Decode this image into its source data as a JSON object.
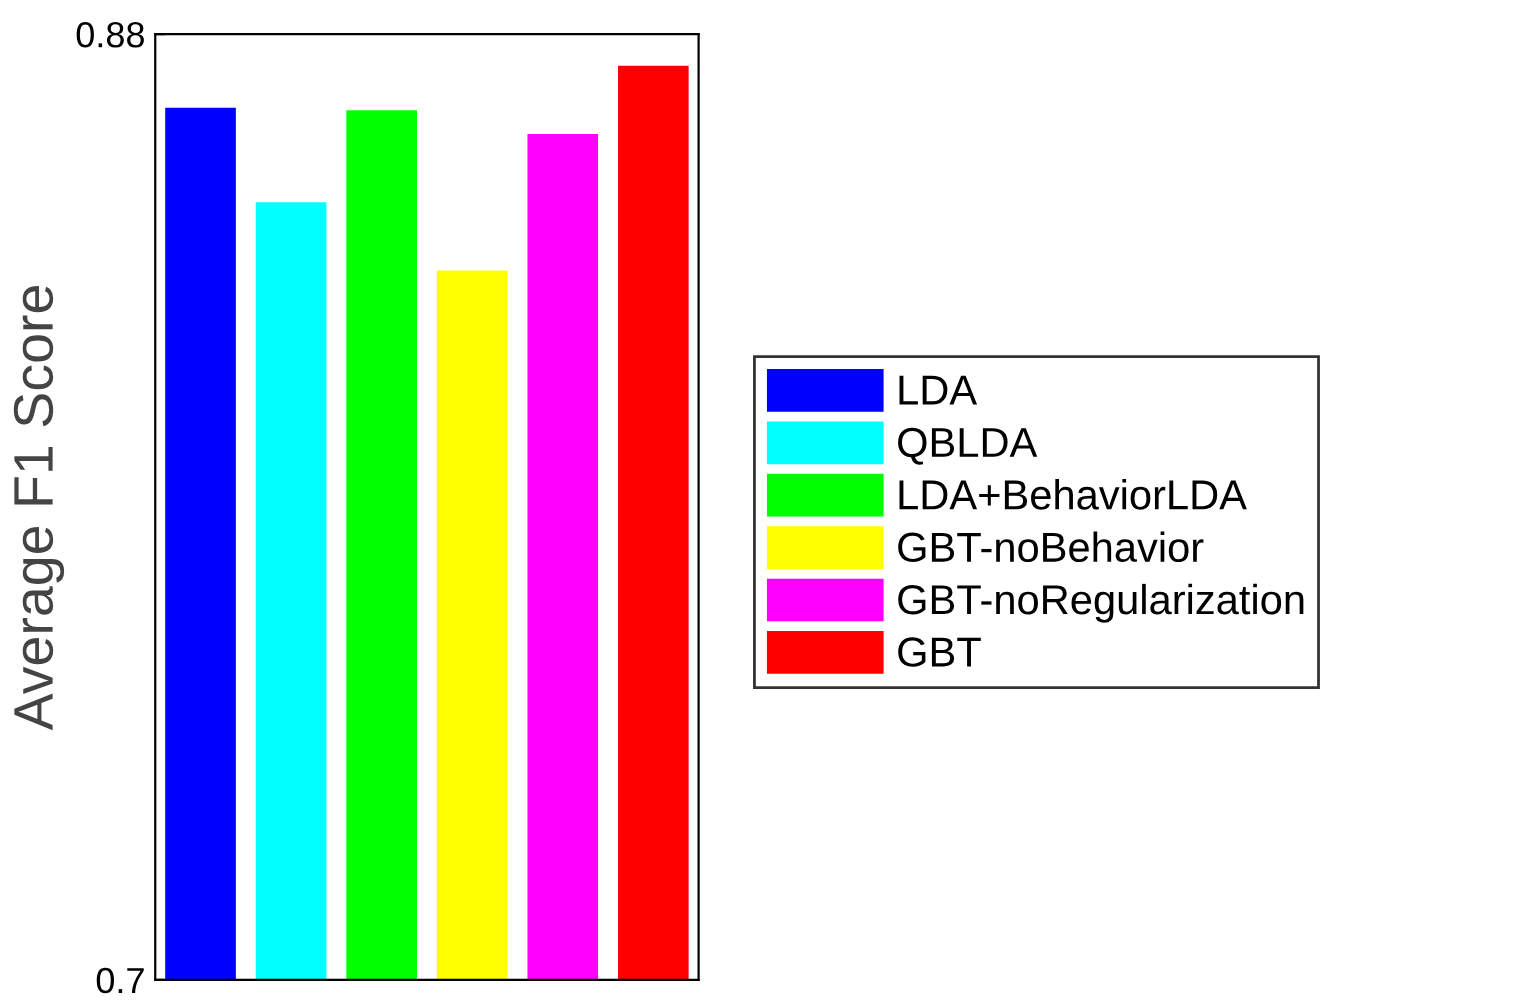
{
  "chart_data": {
    "type": "bar",
    "ylabel": "Average F1 Score",
    "categories": [
      null
    ],
    "series": [
      {
        "name": "LDA",
        "color": "#0000ff",
        "values": [
          0.866
        ]
      },
      {
        "name": "QBLDA",
        "color": "#00ffff",
        "values": [
          0.848
        ]
      },
      {
        "name": "LDA+BehaviorLDA",
        "color": "#00ff00",
        "values": [
          0.8655
        ]
      },
      {
        "name": "GBT-noBehavior",
        "color": "#ffff00",
        "values": [
          0.835
        ]
      },
      {
        "name": "GBT-noRegularization",
        "color": "#ff00ff",
        "values": [
          0.861
        ]
      },
      {
        "name": "GBT",
        "color": "#ff0000",
        "values": [
          0.874
        ]
      }
    ],
    "ylim": [
      0.7,
      0.88
    ],
    "yticks": [
      0.7,
      0.88
    ],
    "grid": false,
    "legend": "right"
  }
}
